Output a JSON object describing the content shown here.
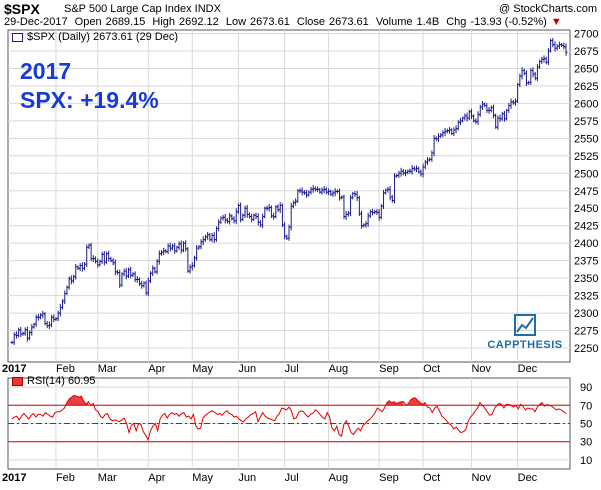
{
  "header": {
    "symbol": "$SPX",
    "name": "S&P 500 Large Cap Index INDX",
    "credit": "@ StockCharts.com",
    "date": "29-Dec-2017",
    "open_label": "Open",
    "open": "2689.15",
    "high_label": "High",
    "high": "2692.12",
    "low_label": "Low",
    "low": "2673.61",
    "close_label": "Close",
    "close": "2673.61",
    "volume_label": "Volume",
    "volume": "1.4B",
    "chg_label": "Chg",
    "chg": "-13.93 (-0.52%)",
    "chg_arrow": "▼"
  },
  "legend": "$SPX (Daily) 2673.61 (29 Dec)",
  "annotation": {
    "line1": "2017",
    "line2": "SPX: +19.4%"
  },
  "logo": {
    "text": "CAPPTHESIS",
    "color": "#1d6fa8"
  },
  "rsi_legend": "RSI(14) 60.95",
  "colors": {
    "price": "#1a1a8c",
    "rsi": "#e00000",
    "annotation": "#1a3ad6",
    "grid": "#d8d8d8"
  },
  "chart_data": [
    {
      "type": "line",
      "series": [
        {
          "name": "$SPX (Daily)",
          "type": "ohlc-bars",
          "values": [
            2258,
            2269,
            2268,
            2276,
            2270,
            2271,
            2276,
            2264,
            2272,
            2280,
            2284,
            2294,
            2294,
            2297,
            2299,
            2285,
            2282,
            2283,
            2294,
            2291,
            2292,
            2300,
            2308,
            2317,
            2328,
            2337,
            2349,
            2346,
            2352,
            2366,
            2364,
            2368,
            2364,
            2370,
            2394,
            2397,
            2378,
            2378,
            2374,
            2369,
            2374,
            2384,
            2373,
            2385,
            2378,
            2375,
            2372,
            2359,
            2358,
            2340,
            2356,
            2360,
            2353,
            2362,
            2354,
            2356,
            2348,
            2348,
            2342,
            2339,
            2343,
            2329,
            2346,
            2357,
            2364,
            2359,
            2374,
            2385,
            2387,
            2389,
            2388,
            2396,
            2393,
            2396,
            2389,
            2394,
            2399,
            2390,
            2400,
            2392,
            2360,
            2366,
            2368,
            2379,
            2393,
            2395,
            2402,
            2405,
            2409,
            2412,
            2405,
            2411,
            2405,
            2421,
            2430,
            2436,
            2437,
            2433,
            2431,
            2439,
            2435,
            2432,
            2445,
            2454,
            2434,
            2440,
            2450,
            2441,
            2438,
            2434,
            2440,
            2438,
            2430,
            2426,
            2438,
            2450,
            2450,
            2451,
            2439,
            2438,
            2452,
            2448,
            2454,
            2426,
            2410,
            2407,
            2423,
            2453,
            2458,
            2460,
            2475,
            2475,
            2473,
            2472,
            2469,
            2473,
            2477,
            2478,
            2477,
            2477,
            2473,
            2476,
            2477,
            2473,
            2474,
            2470,
            2472,
            2474,
            2474,
            2465,
            2466,
            2438,
            2441,
            2443,
            2465,
            2471,
            2470,
            2465,
            2442,
            2425,
            2426,
            2428,
            2439,
            2445,
            2444,
            2445,
            2444,
            2437,
            2453,
            2472,
            2476,
            2477,
            2466,
            2461,
            2496,
            2497,
            2500,
            2503,
            2500,
            2501,
            2503,
            2503,
            2507,
            2506,
            2507,
            2502,
            2499,
            2509,
            2516,
            2519,
            2520,
            2529,
            2550,
            2549,
            2553,
            2555,
            2558,
            2560,
            2561,
            2562,
            2557,
            2562,
            2564,
            2573,
            2575,
            2579,
            2582,
            2579,
            2588,
            2582,
            2575,
            2574,
            2584,
            2595,
            2599,
            2597,
            2590,
            2590,
            2594,
            2583,
            2566,
            2579,
            2578,
            2585,
            2578,
            2590,
            2597,
            2602,
            2601,
            2603,
            2627,
            2639,
            2647,
            2643,
            2629,
            2630,
            2647,
            2642,
            2636,
            2652,
            2660,
            2663,
            2664,
            2659,
            2675,
            2690,
            2684,
            2679,
            2682,
            2684,
            2683,
            2681,
            2673
          ]
        }
      ],
      "x_ticks": [
        "2017",
        "Feb",
        "Mar",
        "Apr",
        "May",
        "Jun",
        "Jul",
        "Aug",
        "Sep",
        "Oct",
        "Nov",
        "Dec"
      ],
      "y_ticks": [
        2250,
        2275,
        2300,
        2325,
        2350,
        2375,
        2400,
        2425,
        2450,
        2475,
        2500,
        2525,
        2550,
        2575,
        2600,
        2625,
        2650,
        2675,
        2700
      ],
      "ylim": [
        2230,
        2705
      ],
      "grid": true
    },
    {
      "type": "line",
      "series": [
        {
          "name": "RSI(14)",
          "values": [
            55,
            57,
            58,
            54,
            58,
            61,
            58,
            55,
            59,
            61,
            57,
            60,
            60,
            58,
            62,
            60,
            58,
            57,
            62,
            63,
            63,
            65,
            67,
            73,
            77,
            79,
            81,
            80,
            79,
            80,
            75,
            71,
            74,
            70,
            72,
            65,
            63,
            58,
            56,
            60,
            61,
            55,
            53,
            54,
            53,
            52,
            54,
            56,
            50,
            40,
            48,
            50,
            42,
            50,
            49,
            41,
            37,
            32,
            42,
            47,
            50,
            42,
            55,
            59,
            61,
            56,
            60,
            62,
            60,
            61,
            58,
            61,
            62,
            57,
            58,
            55,
            60,
            47,
            44,
            45,
            56,
            59,
            61,
            63,
            64,
            62,
            60,
            61,
            59,
            62,
            64,
            61,
            60,
            57,
            58,
            55,
            53,
            52,
            55,
            57,
            60,
            61,
            63,
            52,
            57,
            62,
            58,
            56,
            55,
            54,
            53,
            58,
            61,
            67,
            66,
            65,
            68,
            64,
            55,
            56,
            62,
            64,
            63,
            60,
            57,
            60,
            61,
            65,
            63,
            60,
            57,
            55,
            62,
            57,
            45,
            42,
            47,
            38,
            36,
            49,
            53,
            47,
            40,
            38,
            42,
            45,
            42,
            48,
            50,
            53,
            55,
            58,
            62,
            67,
            65,
            63,
            67,
            73,
            75,
            73,
            74,
            72,
            73,
            74,
            74,
            70,
            72,
            76,
            78,
            78,
            75,
            73,
            71,
            73,
            68,
            67,
            62,
            67,
            69,
            64,
            58,
            56,
            53,
            50,
            48,
            44,
            46,
            43,
            40,
            41,
            43,
            52,
            57,
            60,
            64,
            67,
            73,
            70,
            67,
            63,
            59,
            60,
            66,
            70,
            72,
            71,
            67,
            71,
            71,
            70,
            68,
            70,
            66,
            71,
            69,
            65,
            67,
            66,
            66,
            63,
            68,
            71,
            73,
            69,
            71,
            70,
            69,
            67,
            65,
            66,
            65,
            63,
            61
          ]
        }
      ],
      "x_ticks": [
        "2017",
        "Feb",
        "Mar",
        "Apr",
        "May",
        "Jun",
        "Jul",
        "Aug",
        "Sep",
        "Oct",
        "Nov",
        "Dec"
      ],
      "y_ticks": [
        10,
        30,
        50,
        70,
        90
      ],
      "ylim": [
        0,
        100
      ],
      "overbought": 70,
      "oversold": 30,
      "grid": true
    }
  ]
}
